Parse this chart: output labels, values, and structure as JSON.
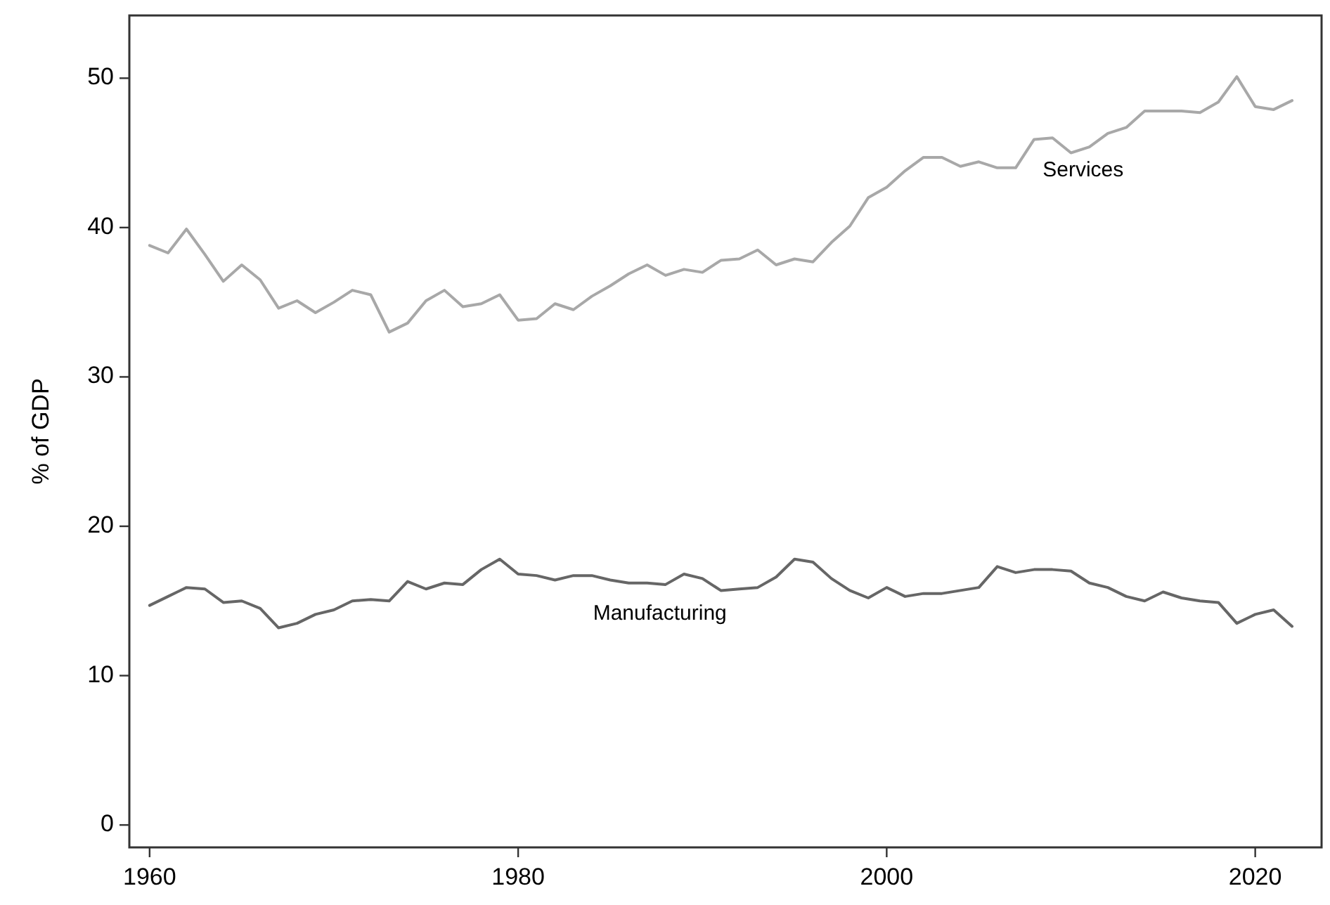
{
  "chart_data": {
    "type": "line",
    "ylabel": "% of GDP",
    "x": [
      1960,
      1961,
      1962,
      1963,
      1964,
      1965,
      1966,
      1967,
      1968,
      1969,
      1970,
      1971,
      1972,
      1973,
      1974,
      1975,
      1976,
      1977,
      1978,
      1979,
      1980,
      1981,
      1982,
      1983,
      1984,
      1985,
      1986,
      1987,
      1988,
      1989,
      1990,
      1991,
      1992,
      1993,
      1994,
      1995,
      1996,
      1997,
      1998,
      1999,
      2000,
      2001,
      2002,
      2003,
      2004,
      2005,
      2006,
      2007,
      2008,
      2009,
      2010,
      2011,
      2012,
      2013,
      2014,
      2015,
      2016,
      2017,
      2018,
      2019,
      2020,
      2021,
      2022
    ],
    "series": [
      {
        "name": "Services",
        "color": "#a8a8a8",
        "values": [
          38.8,
          38.3,
          39.9,
          38.2,
          36.4,
          37.5,
          36.5,
          34.6,
          35.1,
          34.3,
          35.0,
          35.8,
          35.5,
          33.0,
          33.6,
          35.1,
          35.8,
          34.7,
          34.9,
          35.5,
          33.8,
          33.9,
          34.9,
          34.5,
          35.4,
          36.1,
          36.9,
          37.5,
          36.8,
          37.2,
          37.0,
          37.8,
          37.9,
          38.5,
          37.5,
          37.9,
          37.7,
          39.0,
          40.1,
          42.0,
          42.7,
          43.8,
          44.7,
          44.7,
          44.1,
          44.4,
          44.0,
          44.0,
          45.9,
          46.0,
          45.0,
          45.4,
          46.3,
          46.7,
          47.8,
          47.8,
          47.8,
          47.7,
          48.4,
          50.1,
          48.1,
          47.9,
          48.5
        ]
      },
      {
        "name": "Manufacturing",
        "color": "#666666",
        "values": [
          14.7,
          15.3,
          15.9,
          15.8,
          14.9,
          15.0,
          14.5,
          13.2,
          13.5,
          14.1,
          14.4,
          15.0,
          15.1,
          15.0,
          16.3,
          15.8,
          16.2,
          16.1,
          17.1,
          17.8,
          16.8,
          16.7,
          16.4,
          16.7,
          16.7,
          16.4,
          16.2,
          16.2,
          16.1,
          16.8,
          16.5,
          15.7,
          15.8,
          15.9,
          16.6,
          17.8,
          17.6,
          16.5,
          15.7,
          15.2,
          15.9,
          15.3,
          15.5,
          15.5,
          15.7,
          15.9,
          17.3,
          16.9,
          17.1,
          17.1,
          17.0,
          16.2,
          15.9,
          15.3,
          15.0,
          15.6,
          15.2,
          15.0,
          14.9,
          13.5,
          14.1,
          14.4,
          13.3
        ]
      }
    ],
    "xlim": [
      1958.9,
      2023.6
    ],
    "xticks": [
      1960,
      1980,
      2000,
      2020
    ],
    "ylim": [
      -1.5,
      54.2
    ],
    "yticks": [
      0,
      10,
      20,
      30,
      40,
      50
    ],
    "grid": false,
    "marker": "none",
    "line_style": "solid"
  }
}
